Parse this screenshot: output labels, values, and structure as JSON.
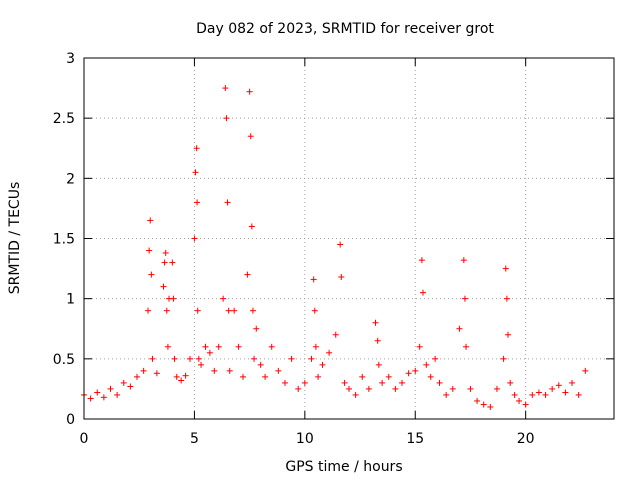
{
  "chart_data": {
    "type": "scatter",
    "title": "Day 082 of 2023, SRMTID for receiver grot",
    "xlabel": "GPS time / hours",
    "ylabel": "SRMTID / TECUs",
    "xlim": [
      0,
      24
    ],
    "ylim": [
      0,
      3
    ],
    "xticks": [
      0,
      5,
      10,
      15,
      20
    ],
    "xtick_labels": [
      "0",
      "5",
      "10",
      "15",
      "20"
    ],
    "yticks": [
      0,
      0.5,
      1,
      1.5,
      2,
      2.5,
      3
    ],
    "ytick_labels": [
      "0",
      "0.5",
      "1",
      "1.5",
      "2",
      "2.5",
      "3"
    ],
    "grid": true,
    "marker": "+",
    "series_color": "#ff0000",
    "series": [
      {
        "name": "SRMTID",
        "x": [
          0.0,
          0.3,
          0.6,
          0.9,
          1.2,
          1.5,
          1.8,
          2.1,
          2.4,
          2.7,
          2.9,
          2.95,
          3.0,
          3.05,
          3.1,
          3.3,
          3.6,
          3.65,
          3.7,
          3.75,
          3.8,
          3.85,
          4.0,
          4.05,
          4.1,
          4.2,
          4.4,
          4.6,
          4.8,
          5.0,
          5.05,
          5.1,
          5.12,
          5.15,
          5.2,
          5.3,
          5.5,
          5.7,
          5.9,
          6.1,
          6.3,
          6.4,
          6.45,
          6.5,
          6.55,
          6.6,
          6.8,
          7.0,
          7.2,
          7.4,
          7.5,
          7.55,
          7.6,
          7.65,
          7.7,
          7.8,
          8.0,
          8.2,
          8.5,
          8.8,
          9.1,
          9.4,
          9.7,
          10.0,
          10.3,
          10.4,
          10.45,
          10.5,
          10.6,
          10.8,
          11.1,
          11.4,
          11.6,
          11.65,
          11.8,
          12.0,
          12.3,
          12.6,
          12.9,
          13.2,
          13.3,
          13.35,
          13.5,
          13.8,
          14.1,
          14.4,
          14.7,
          15.0,
          15.2,
          15.3,
          15.35,
          15.5,
          15.7,
          15.9,
          16.1,
          16.4,
          16.7,
          17.0,
          17.2,
          17.25,
          17.3,
          17.5,
          17.8,
          18.1,
          18.4,
          18.7,
          19.0,
          19.1,
          19.15,
          19.2,
          19.3,
          19.5,
          19.7,
          20.0,
          20.3,
          20.6,
          20.9,
          21.2,
          21.5,
          21.8,
          22.1,
          22.4,
          22.7
        ],
        "y": [
          0.2,
          0.17,
          0.22,
          0.18,
          0.25,
          0.2,
          0.3,
          0.27,
          0.35,
          0.4,
          0.9,
          1.4,
          1.65,
          1.2,
          0.5,
          0.38,
          1.1,
          1.3,
          1.38,
          0.9,
          0.6,
          1.0,
          1.3,
          1.0,
          0.5,
          0.35,
          0.32,
          0.36,
          0.5,
          1.5,
          2.05,
          2.25,
          1.8,
          0.9,
          0.5,
          0.45,
          0.6,
          0.55,
          0.4,
          0.6,
          1.0,
          2.75,
          2.5,
          1.8,
          0.9,
          0.4,
          0.9,
          0.6,
          0.35,
          1.2,
          2.72,
          2.35,
          1.6,
          0.9,
          0.5,
          0.75,
          0.45,
          0.35,
          0.6,
          0.4,
          0.3,
          0.5,
          0.25,
          0.3,
          0.5,
          1.16,
          0.9,
          0.6,
          0.35,
          0.45,
          0.55,
          0.7,
          1.45,
          1.18,
          0.3,
          0.25,
          0.2,
          0.35,
          0.25,
          0.8,
          0.65,
          0.45,
          0.3,
          0.35,
          0.25,
          0.3,
          0.38,
          0.4,
          0.6,
          1.32,
          1.05,
          0.45,
          0.35,
          0.5,
          0.3,
          0.2,
          0.25,
          0.75,
          1.32,
          1.0,
          0.6,
          0.25,
          0.15,
          0.12,
          0.1,
          0.25,
          0.5,
          1.25,
          1.0,
          0.7,
          0.3,
          0.2,
          0.15,
          0.12,
          0.2,
          0.22,
          0.2,
          0.25,
          0.28,
          0.22,
          0.3,
          0.2,
          0.4
        ]
      }
    ]
  }
}
